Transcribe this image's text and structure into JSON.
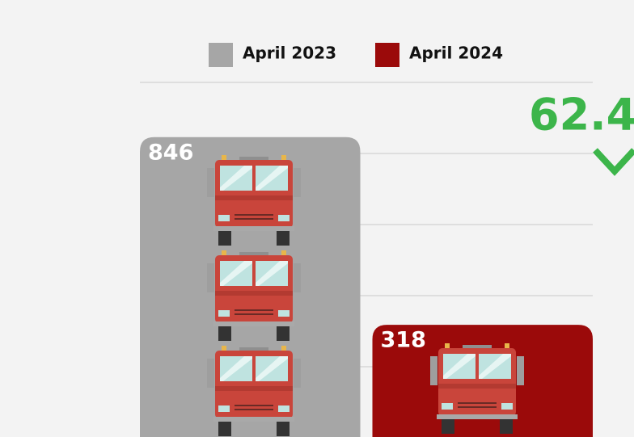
{
  "chart_data": {
    "type": "bar",
    "series": [
      {
        "name": "April 2023",
        "color": "#a6a6a6",
        "values": [
          846
        ]
      },
      {
        "name": "April 2024",
        "color": "#9b0a0a",
        "values": [
          318
        ]
      }
    ],
    "ylim": [
      0,
      1000
    ],
    "yticks": [
      0,
      200,
      400,
      600,
      800,
      1000
    ],
    "grid": true,
    "annotation": "62.4",
    "annotation_color": "#3cb54a"
  }
}
